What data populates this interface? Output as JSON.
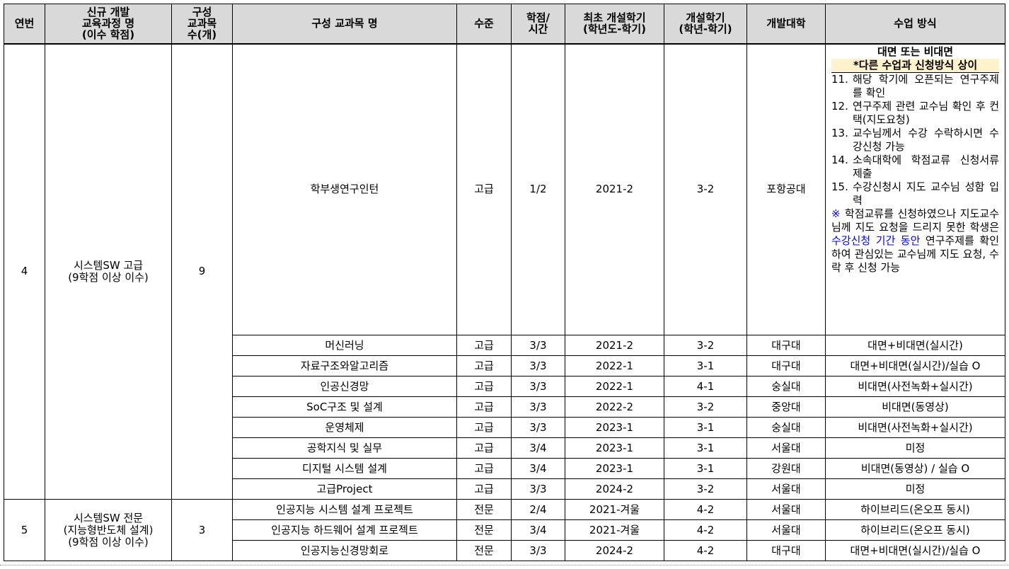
{
  "headers": [
    "연번",
    "신규 개발\n교육과정 명\n(이수 학점)",
    "구성\n교과목\n수(개)",
    "구성 교과목 명",
    "수준",
    "학점/\n시간",
    "최초 개설학기\n(학년도-학기)",
    "개설학기\n(학년-학기)",
    "개발대학",
    "수업 방식"
  ],
  "groups": [
    {
      "no": "4",
      "program": "시스템SW 고급",
      "program_credit": "(9학점 이상 이수)",
      "count": "9",
      "courses": [
        {
          "name": "학부생연구인턴",
          "level": "고급",
          "credit": "1/2",
          "first": "2021-2",
          "term": "3-2",
          "univ": "포항공대"
        },
        {
          "name": "머신러닝",
          "level": "고급",
          "credit": "3/3",
          "first": "2021-2",
          "term": "3-2",
          "univ": "대구대",
          "method": "대면+비대면(실시간)"
        },
        {
          "name": "자료구조와알고리즘",
          "level": "고급",
          "credit": "3/3",
          "first": "2022-1",
          "term": "3-1",
          "univ": "대구대",
          "method": "대면+비대면(실시간)/실습 O"
        },
        {
          "name": "인공신경망",
          "level": "고급",
          "credit": "3/3",
          "first": "2022-1",
          "term": "4-1",
          "univ": "숭실대",
          "method": "비대면(사전녹화+실시간)"
        },
        {
          "name": "SoC구조 및 설계",
          "level": "고급",
          "credit": "3/3",
          "first": "2022-2",
          "term": "3-2",
          "univ": "중앙대",
          "method": "비대면(동영상)"
        },
        {
          "name": "운영체제",
          "level": "고급",
          "credit": "3/3",
          "first": "2023-1",
          "term": "3-1",
          "univ": "숭실대",
          "method": "비대면(사전녹화+실시간)"
        },
        {
          "name": "공학지식 및 실무",
          "level": "고급",
          "credit": "3/4",
          "first": "2023-1",
          "term": "3-1",
          "univ": "서울대",
          "method": "미정"
        },
        {
          "name": "디지털 시스템 설계",
          "level": "고급",
          "credit": "3/4",
          "first": "2023-1",
          "term": "3-1",
          "univ": "강원대",
          "method": "비대면(동영상) / 실습 O"
        },
        {
          "name": "고급Project",
          "level": "고급",
          "credit": "3/3",
          "first": "2024-2",
          "term": "3-2",
          "univ": "서울대",
          "method": "미정"
        }
      ]
    },
    {
      "no": "5",
      "program": "시스템SW 전문",
      "program_sub": "(지능형반도체 설계)",
      "program_credit": "(9학점 이상 이수)",
      "count": "3",
      "courses": [
        {
          "name": "인공지능 시스템 설계 프로젝트",
          "level": "전문",
          "credit": "2/4",
          "first": "2021-겨울",
          "term": "4-2",
          "univ": "서울대",
          "method": "하이브리드(온오프 동시)"
        },
        {
          "name": "인공지능 하드웨어 설계 프로젝트",
          "level": "전문",
          "credit": "3/4",
          "first": "2021-겨울",
          "term": "4-2",
          "univ": "서울대",
          "method": "하이브리드(온오프 동시)"
        },
        {
          "name": "인공지능신경망회로",
          "level": "전문",
          "credit": "3/3",
          "first": "2024-2",
          "term": "4-2",
          "univ": "대구대",
          "method": "대면+비대면(실시간)/실습 O"
        }
      ]
    }
  ],
  "intern_method": {
    "title": "대면 또는 비대면",
    "note": "*다른 수업과 신청방식 상이",
    "steps": [
      {
        "n": "11.",
        "t": "해당 학기에 오픈되는 연구주제를 확인"
      },
      {
        "n": "12.",
        "t": "연구주제 관련 교수님 확인 후 컨택(지도요청)"
      },
      {
        "n": "13.",
        "t": "교수님께서 수강 수락하시면 수강신청 가능"
      },
      {
        "n": "14.",
        "t": "소속대학에 학점교류 신청서류 제출"
      },
      {
        "n": "15.",
        "t": "수강신청시 지도 교수님 성함 입력"
      }
    ],
    "remark_mark": "※",
    "remark_1": " 학점교류를 신청하였으나 지도교수님께 지도 요청을 드리지 못한 학생은 ",
    "remark_highlight": "수강신청 기간 동안",
    "remark_2": " 연구주제를 확인하여 관심있는 교수님께 지도 요청, 수락 후 신청 가능"
  }
}
